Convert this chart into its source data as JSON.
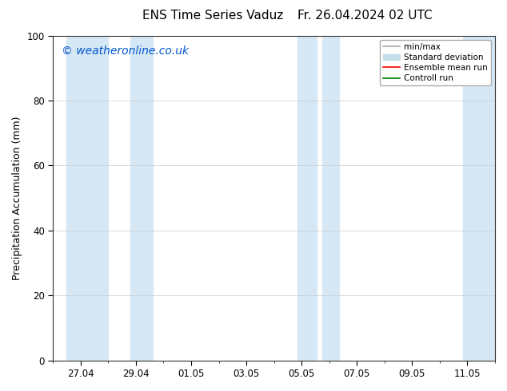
{
  "title_left": "ENS Time Series Vaduz",
  "title_right": "Fr. 26.04.2024 02 UTC",
  "ylabel": "Precipitation Accumulation (mm)",
  "watermark": "© weatheronline.co.uk",
  "watermark_color": "#0055cc",
  "ylim": [
    0,
    100
  ],
  "yticks": [
    0,
    20,
    40,
    60,
    80,
    100
  ],
  "xtick_labels": [
    "27.04",
    "29.04",
    "01.05",
    "03.05",
    "05.05",
    "07.05",
    "09.05",
    "11.05"
  ],
  "background_color": "#ffffff",
  "plot_bg_color": "#ffffff",
  "band_color": "#d6e8f5",
  "shaded_x": [
    [
      0.5,
      2.0
    ],
    [
      2.8,
      3.6
    ],
    [
      8.85,
      9.55
    ],
    [
      9.75,
      10.35
    ],
    [
      14.85,
      16.0
    ]
  ],
  "legend_entries": [
    {
      "label": "min/max",
      "color": "#aaaaaa",
      "type": "errorbar"
    },
    {
      "label": "Standard deviation",
      "color": "#c5dcea",
      "type": "patch"
    },
    {
      "label": "Ensemble mean run",
      "color": "#ff0000",
      "type": "line"
    },
    {
      "label": "Controll run",
      "color": "#008000",
      "type": "line"
    }
  ],
  "title_fontsize": 11,
  "axis_label_fontsize": 9,
  "tick_fontsize": 8.5,
  "watermark_fontsize": 10,
  "legend_fontsize": 7.5,
  "x_min": 0,
  "x_max": 16,
  "tick_positions": [
    1,
    3,
    5,
    7,
    9,
    11,
    13,
    15
  ]
}
